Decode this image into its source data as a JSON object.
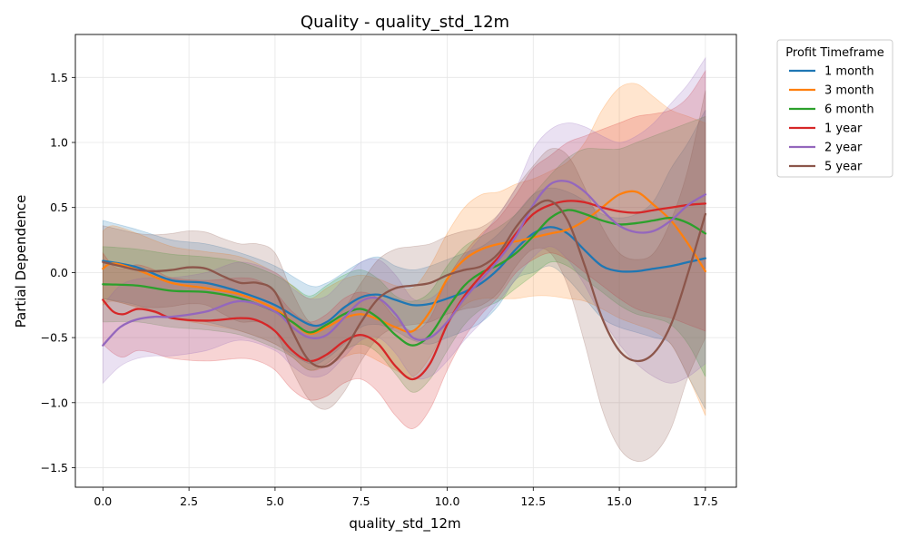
{
  "chart_data": {
    "type": "line",
    "title": "Quality - quality_std_12m",
    "xlabel": "quality_std_12m",
    "ylabel": "Partial Dependence",
    "xlim": [
      -0.8,
      18.4
    ],
    "ylim": [
      -1.65,
      1.83
    ],
    "x_ticks": [
      0.0,
      2.5,
      5.0,
      7.5,
      10.0,
      12.5,
      15.0,
      17.5
    ],
    "x_tick_labels": [
      "0.0",
      "2.5",
      "5.0",
      "7.5",
      "10.0",
      "12.5",
      "15.0",
      "17.5"
    ],
    "y_ticks": [
      -1.5,
      -1.0,
      -0.5,
      0.0,
      0.5,
      1.0,
      1.5
    ],
    "y_tick_labels": [
      "−1.5",
      "−1.0",
      "−0.5",
      "0.0",
      "0.5",
      "1.0",
      "1.5"
    ],
    "grid": true,
    "legend_title": "Profit Timeframe",
    "legend_position": "outside-top-right",
    "series": [
      {
        "name": "1 month",
        "color": "#1f77b4",
        "x": [
          0,
          1,
          2,
          3,
          4,
          5,
          6,
          6.5,
          7,
          7.5,
          8,
          8.5,
          9,
          9.5,
          10,
          10.5,
          11,
          11.5,
          12,
          12.5,
          13,
          13.5,
          14,
          14.5,
          15,
          15.5,
          16,
          16.5,
          17,
          17.5
        ],
        "values": [
          0.09,
          0.04,
          -0.06,
          -0.08,
          -0.15,
          -0.25,
          -0.4,
          -0.38,
          -0.27,
          -0.19,
          -0.17,
          -0.21,
          -0.25,
          -0.24,
          -0.2,
          -0.15,
          -0.08,
          0.03,
          0.18,
          0.3,
          0.35,
          0.3,
          0.17,
          0.05,
          0.01,
          0.01,
          0.03,
          0.05,
          0.08,
          0.11
        ],
        "lower": [
          -0.2,
          -0.25,
          -0.35,
          -0.38,
          -0.45,
          -0.55,
          -0.7,
          -0.66,
          -0.55,
          -0.42,
          -0.4,
          -0.45,
          -0.52,
          -0.55,
          -0.5,
          -0.45,
          -0.38,
          -0.25,
          -0.05,
          0.0,
          0.05,
          -0.05,
          -0.2,
          -0.35,
          -0.42,
          -0.46,
          -0.5,
          -0.55,
          -0.8,
          -1.05
        ],
        "upper": [
          0.4,
          0.33,
          0.25,
          0.22,
          0.15,
          0.05,
          -0.1,
          -0.08,
          0.0,
          0.08,
          0.12,
          0.05,
          0.02,
          0.05,
          0.1,
          0.15,
          0.2,
          0.3,
          0.45,
          0.6,
          0.65,
          0.62,
          0.55,
          0.45,
          0.42,
          0.45,
          0.55,
          0.8,
          1.0,
          1.25
        ]
      },
      {
        "name": "3 month",
        "color": "#ff7f0e",
        "x": [
          0,
          0.3,
          1,
          2,
          3,
          4,
          5,
          5.5,
          6,
          6.5,
          7,
          7.5,
          8,
          8.5,
          9,
          9.5,
          10,
          10.5,
          11,
          11.5,
          12,
          12.5,
          13,
          13.5,
          14,
          14.5,
          15,
          15.5,
          16,
          16.5,
          17,
          17.5
        ],
        "values": [
          0.03,
          0.07,
          0.02,
          -0.08,
          -0.12,
          -0.17,
          -0.28,
          -0.38,
          -0.47,
          -0.42,
          -0.35,
          -0.32,
          -0.36,
          -0.42,
          -0.45,
          -0.3,
          -0.05,
          0.1,
          0.18,
          0.22,
          0.24,
          0.27,
          0.3,
          0.33,
          0.4,
          0.5,
          0.6,
          0.62,
          0.52,
          0.4,
          0.22,
          0.01
        ],
        "lower": [
          -0.25,
          -0.22,
          -0.27,
          -0.35,
          -0.4,
          -0.45,
          -0.55,
          -0.65,
          -0.75,
          -0.72,
          -0.65,
          -0.62,
          -0.68,
          -0.75,
          -0.8,
          -0.65,
          -0.4,
          -0.25,
          -0.2,
          -0.2,
          -0.2,
          -0.18,
          -0.18,
          -0.2,
          -0.22,
          -0.28,
          -0.35,
          -0.4,
          -0.45,
          -0.55,
          -0.8,
          -1.1
        ],
        "upper": [
          0.32,
          0.36,
          0.3,
          0.2,
          0.16,
          0.12,
          0.0,
          -0.1,
          -0.2,
          -0.12,
          -0.05,
          -0.02,
          -0.05,
          -0.1,
          -0.12,
          0.05,
          0.3,
          0.5,
          0.6,
          0.62,
          0.68,
          0.72,
          0.78,
          0.85,
          1.0,
          1.25,
          1.42,
          1.45,
          1.35,
          1.25,
          1.2,
          1.15
        ]
      },
      {
        "name": "6 month",
        "color": "#2ca02c",
        "x": [
          0,
          1,
          2,
          3,
          4,
          5,
          5.5,
          6,
          6.5,
          7,
          7.5,
          8,
          8.5,
          9,
          9.5,
          10,
          10.5,
          11,
          11.5,
          12,
          12.5,
          13,
          13.5,
          14,
          14.5,
          15,
          15.5,
          16,
          16.5,
          17,
          17.5
        ],
        "values": [
          -0.09,
          -0.1,
          -0.14,
          -0.15,
          -0.2,
          -0.3,
          -0.38,
          -0.46,
          -0.4,
          -0.32,
          -0.28,
          -0.35,
          -0.48,
          -0.56,
          -0.48,
          -0.28,
          -0.1,
          0.0,
          0.06,
          0.15,
          0.28,
          0.42,
          0.48,
          0.45,
          0.4,
          0.37,
          0.38,
          0.4,
          0.42,
          0.38,
          0.3
        ],
        "lower": [
          -0.38,
          -0.38,
          -0.42,
          -0.44,
          -0.48,
          -0.58,
          -0.65,
          -0.75,
          -0.7,
          -0.6,
          -0.55,
          -0.62,
          -0.78,
          -0.92,
          -0.82,
          -0.6,
          -0.4,
          -0.28,
          -0.22,
          -0.12,
          -0.02,
          0.08,
          0.05,
          -0.05,
          -0.15,
          -0.25,
          -0.32,
          -0.35,
          -0.4,
          -0.55,
          -0.8
        ],
        "upper": [
          0.2,
          0.18,
          0.14,
          0.12,
          0.08,
          -0.02,
          -0.1,
          -0.18,
          -0.1,
          -0.02,
          0.02,
          -0.05,
          -0.18,
          -0.22,
          -0.15,
          0.05,
          0.2,
          0.28,
          0.35,
          0.45,
          0.6,
          0.75,
          0.88,
          0.95,
          0.95,
          0.95,
          1.0,
          1.05,
          1.1,
          1.15,
          1.2
        ]
      },
      {
        "name": "1 year",
        "color": "#d62728",
        "x": [
          0,
          0.3,
          0.6,
          1,
          1.5,
          2,
          3,
          4,
          4.5,
          5,
          5.5,
          6,
          6.5,
          7,
          7.5,
          8,
          8.5,
          9,
          9.5,
          10,
          10.5,
          11,
          11.5,
          12,
          12.5,
          13,
          13.5,
          14,
          14.5,
          15,
          15.5,
          16,
          16.5,
          17,
          17.5
        ],
        "values": [
          -0.21,
          -0.3,
          -0.32,
          -0.28,
          -0.3,
          -0.35,
          -0.37,
          -0.35,
          -0.37,
          -0.45,
          -0.6,
          -0.68,
          -0.63,
          -0.53,
          -0.48,
          -0.55,
          -0.72,
          -0.82,
          -0.7,
          -0.4,
          -0.18,
          -0.02,
          0.12,
          0.3,
          0.45,
          0.52,
          0.55,
          0.54,
          0.5,
          0.47,
          0.46,
          0.48,
          0.5,
          0.52,
          0.53
        ],
        "lower": [
          -0.55,
          -0.62,
          -0.65,
          -0.6,
          -0.62,
          -0.66,
          -0.68,
          -0.66,
          -0.68,
          -0.75,
          -0.9,
          -0.98,
          -0.95,
          -0.85,
          -0.82,
          -0.92,
          -1.1,
          -1.2,
          -1.05,
          -0.75,
          -0.5,
          -0.32,
          -0.18,
          0.0,
          0.1,
          0.15,
          0.1,
          0.0,
          -0.1,
          -0.2,
          -0.28,
          -0.32,
          -0.35,
          -0.4,
          -0.45
        ],
        "upper": [
          0.15,
          0.05,
          0.03,
          0.06,
          0.02,
          -0.04,
          -0.06,
          -0.04,
          -0.06,
          -0.15,
          -0.3,
          -0.38,
          -0.32,
          -0.2,
          -0.15,
          -0.2,
          -0.35,
          -0.45,
          -0.35,
          -0.05,
          0.15,
          0.3,
          0.42,
          0.6,
          0.8,
          0.9,
          1.0,
          1.05,
          1.1,
          1.15,
          1.2,
          1.22,
          1.25,
          1.35,
          1.55
        ]
      },
      {
        "name": "2 year",
        "color": "#9467bd",
        "x": [
          0,
          0.5,
          1,
          1.5,
          2,
          3,
          4,
          5,
          5.5,
          6,
          6.5,
          7,
          7.5,
          8,
          8.5,
          9,
          9.5,
          10,
          10.5,
          11,
          11.5,
          12,
          12.5,
          13,
          13.5,
          14,
          14.5,
          15,
          15.5,
          16,
          16.5,
          17,
          17.5
        ],
        "values": [
          -0.56,
          -0.42,
          -0.36,
          -0.34,
          -0.34,
          -0.3,
          -0.22,
          -0.3,
          -0.42,
          -0.5,
          -0.48,
          -0.35,
          -0.22,
          -0.2,
          -0.32,
          -0.5,
          -0.5,
          -0.38,
          -0.2,
          -0.05,
          0.1,
          0.28,
          0.52,
          0.68,
          0.7,
          0.62,
          0.48,
          0.36,
          0.31,
          0.32,
          0.4,
          0.52,
          0.6
        ],
        "lower": [
          -0.85,
          -0.72,
          -0.66,
          -0.64,
          -0.64,
          -0.6,
          -0.52,
          -0.6,
          -0.72,
          -0.8,
          -0.78,
          -0.65,
          -0.52,
          -0.5,
          -0.62,
          -0.8,
          -0.8,
          -0.68,
          -0.52,
          -0.38,
          -0.22,
          -0.05,
          0.12,
          0.2,
          0.1,
          -0.1,
          -0.35,
          -0.55,
          -0.7,
          -0.8,
          -0.85,
          -0.8,
          -0.7
        ],
        "upper": [
          -0.25,
          -0.1,
          -0.05,
          -0.04,
          -0.04,
          0.0,
          0.08,
          0.0,
          -0.12,
          -0.2,
          -0.18,
          -0.05,
          0.08,
          0.1,
          -0.02,
          -0.2,
          -0.2,
          -0.08,
          0.12,
          0.28,
          0.45,
          0.65,
          0.95,
          1.1,
          1.15,
          1.12,
          1.05,
          1.0,
          1.05,
          1.15,
          1.3,
          1.45,
          1.65
        ]
      },
      {
        "name": "5 year",
        "color": "#8c564b",
        "x": [
          0,
          0.5,
          1,
          1.5,
          2,
          2.5,
          3,
          3.5,
          4,
          4.5,
          5,
          5.5,
          6,
          6.5,
          7,
          7.5,
          8,
          8.5,
          9,
          9.5,
          10,
          10.5,
          11,
          11.5,
          12,
          12.5,
          13,
          13.5,
          14,
          14.5,
          15,
          15.5,
          16,
          16.5,
          17,
          17.5
        ],
        "values": [
          0.08,
          0.05,
          0.02,
          0.01,
          0.02,
          0.04,
          0.03,
          -0.03,
          -0.08,
          -0.08,
          -0.15,
          -0.45,
          -0.68,
          -0.72,
          -0.6,
          -0.38,
          -0.2,
          -0.12,
          -0.1,
          -0.08,
          -0.02,
          0.02,
          0.05,
          0.15,
          0.35,
          0.5,
          0.55,
          0.4,
          0.05,
          -0.35,
          -0.6,
          -0.68,
          -0.62,
          -0.4,
          0.0,
          0.45
        ],
        "lower": [
          -0.2,
          -0.23,
          -0.26,
          -0.27,
          -0.26,
          -0.24,
          -0.25,
          -0.32,
          -0.38,
          -0.38,
          -0.45,
          -0.75,
          -0.98,
          -1.05,
          -0.92,
          -0.68,
          -0.5,
          -0.42,
          -0.4,
          -0.38,
          -0.32,
          -0.28,
          -0.25,
          -0.15,
          0.05,
          0.18,
          0.15,
          -0.1,
          -0.55,
          -1.05,
          -1.35,
          -1.45,
          -1.4,
          -1.2,
          -0.8,
          -0.5
        ],
        "upper": [
          0.36,
          0.33,
          0.3,
          0.29,
          0.3,
          0.32,
          0.31,
          0.26,
          0.22,
          0.22,
          0.15,
          -0.15,
          -0.38,
          -0.4,
          -0.28,
          -0.08,
          0.1,
          0.18,
          0.2,
          0.22,
          0.28,
          0.32,
          0.35,
          0.45,
          0.65,
          0.82,
          0.95,
          0.9,
          0.65,
          0.35,
          0.15,
          0.1,
          0.15,
          0.4,
          0.8,
          1.4
        ]
      }
    ]
  }
}
